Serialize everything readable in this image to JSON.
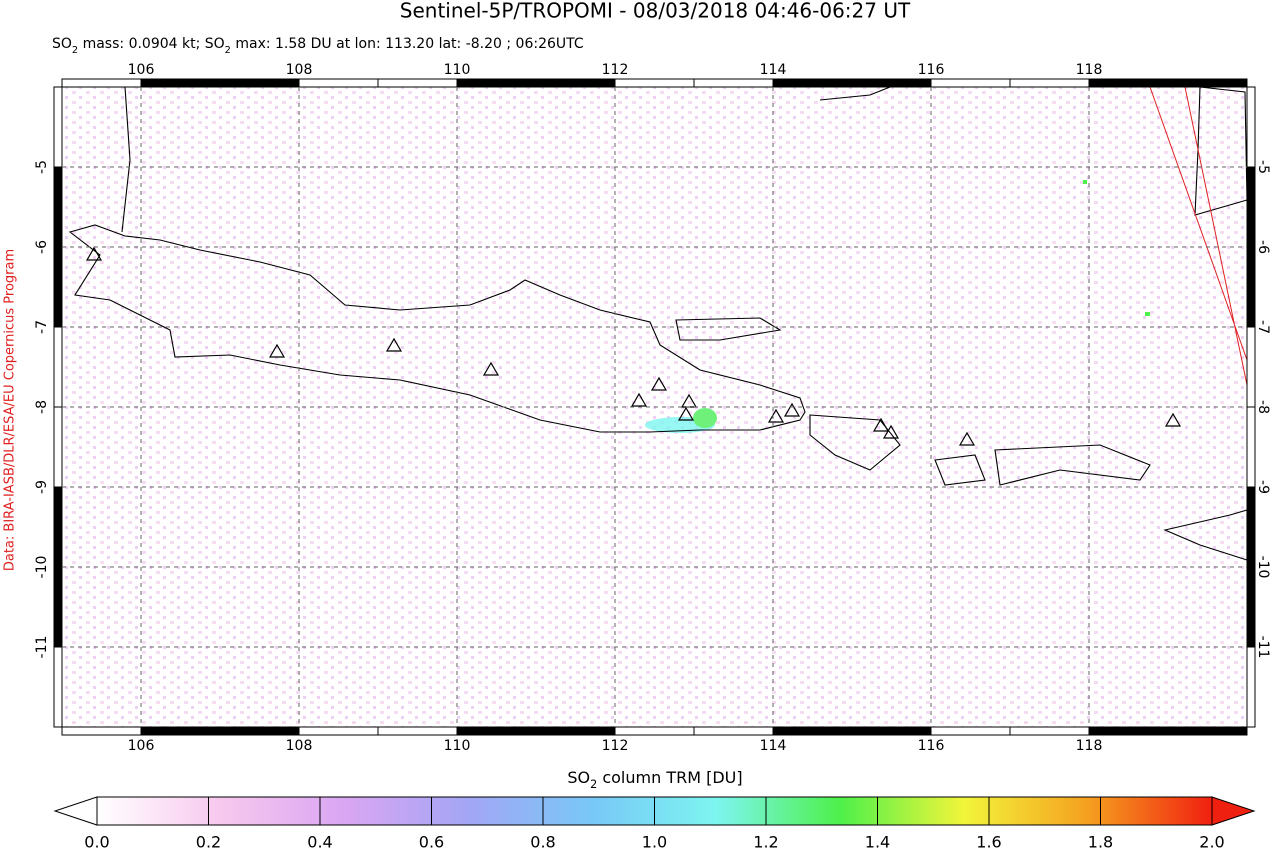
{
  "chart_data": {
    "type": "map",
    "title": "Sentinel-5P/TROPOMI - 08/03/2018 04:46-06:27 UT",
    "subtitle": [
      "SO",
      "2",
      " mass: 0.0904 kt; SO",
      "2",
      " max: 1.58 DU at lon: 113.20 lat: -8.20 ; 06:26UTC"
    ],
    "side_note": "Data: BIRA-IASB/DLR/ESA/EU Copernicus Program",
    "xlim": [
      105,
      120
    ],
    "xticks": [
      106,
      108,
      110,
      112,
      114,
      116,
      118
    ],
    "ylim": [
      -12,
      -4
    ],
    "yticks": [
      -5,
      -6,
      -7,
      -8,
      -9,
      -10,
      -11
    ],
    "grid": true,
    "colorbar": {
      "label": [
        "SO",
        "2",
        " column TRM [DU]"
      ],
      "lim": [
        0,
        2
      ],
      "ticks": [
        {
          "value": 0,
          "label": "0.0"
        },
        0.2,
        0.4,
        0.6,
        0.8,
        {
          "value": 1,
          "label": "1.0"
        },
        1.2,
        1.4,
        1.6,
        1.8,
        {
          "value": 2,
          "label": "2.0"
        }
      ],
      "colors": [
        "#ffffff",
        "#f7c8ee",
        "#d9a6f2",
        "#a3a6f5",
        "#78c8f7",
        "#7df5f0",
        "#4ef04a",
        "#f2f53a",
        "#f5a020",
        "#f02010"
      ]
    }
  }
}
